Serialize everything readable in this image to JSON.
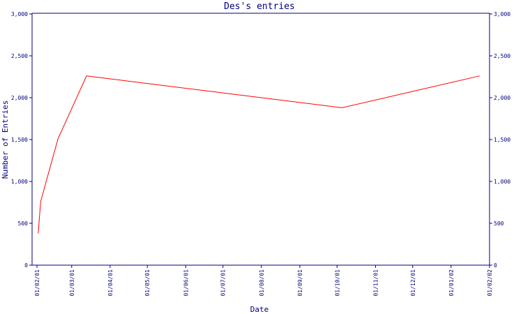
{
  "chart_data": {
    "type": "line",
    "title": "Des's entries",
    "xlabel": "Date",
    "ylabel": "Number of Entries",
    "ylim": [
      0,
      3000
    ],
    "yticks": [
      "0",
      "500",
      "1,000",
      "1,500",
      "2,000",
      "2,500",
      "3,000"
    ],
    "xticks": [
      "01/02/01",
      "01/03/01",
      "01/04/01",
      "01/05/01",
      "01/06/01",
      "01/07/01",
      "01/08/01",
      "01/09/01",
      "01/10/01",
      "01/11/01",
      "01/12/01",
      "01/01/02",
      "01/02/02"
    ],
    "grid": false,
    "series": [
      {
        "color": "#ff0000",
        "points": [
          {
            "x": "2001-02-02",
            "y": 380
          },
          {
            "x": "2001-02-04",
            "y": 760
          },
          {
            "x": "2001-02-18",
            "y": 1510
          },
          {
            "x": "2001-03-13",
            "y": 2260
          },
          {
            "x": "2001-10-05",
            "y": 1880
          },
          {
            "x": "2002-01-24",
            "y": 2260
          }
        ]
      }
    ],
    "colors": {
      "axis": "#000080",
      "text": "#000080",
      "line": "#ff0000",
      "background": "#ffffff"
    }
  }
}
